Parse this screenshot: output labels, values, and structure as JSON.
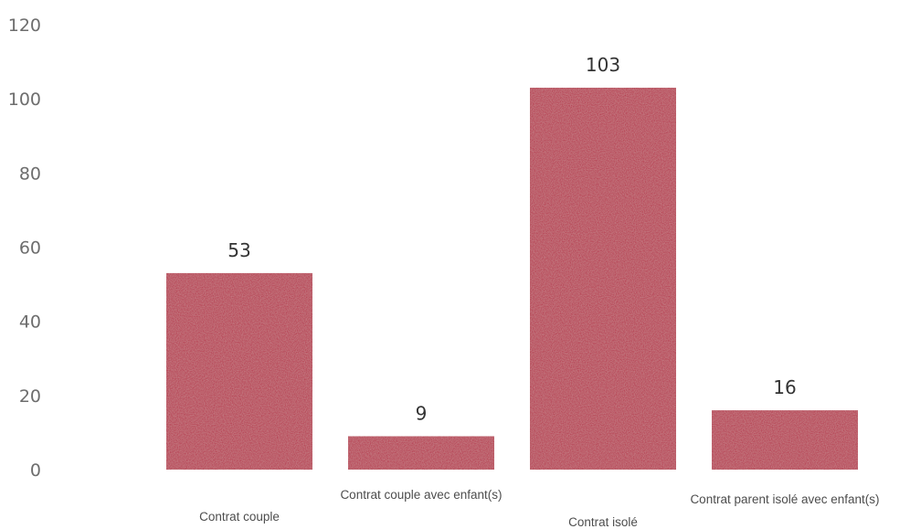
{
  "chart_data": {
    "type": "bar",
    "title": "",
    "xlabel": "",
    "ylabel": "",
    "categories": [
      "Contrat couple",
      "Contrat couple avec enfant(s)",
      "Contrat isolé",
      "Contrat parent isolé avec enfant(s)"
    ],
    "series": [
      {
        "values": [
          53,
          9,
          103,
          16
        ]
      }
    ],
    "ylim": [
      0,
      120
    ],
    "yticks": [
      0,
      20,
      40,
      60,
      80,
      100,
      120
    ],
    "grid": false,
    "legend": "none",
    "data_labels": true,
    "bar_color": "#b3223f"
  }
}
